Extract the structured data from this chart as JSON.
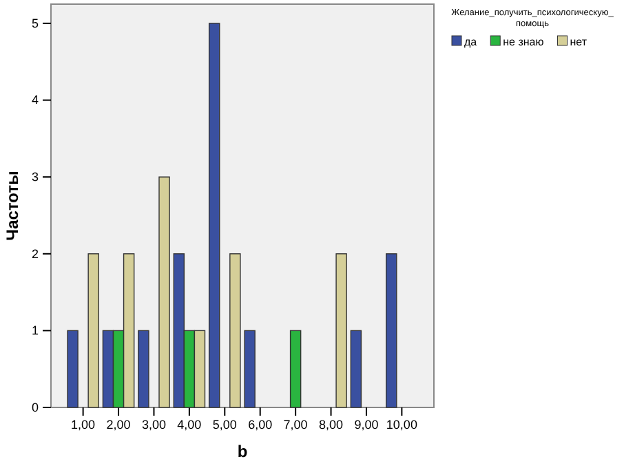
{
  "chart_data": {
    "type": "bar",
    "xlabel": "b",
    "ylabel": "Частоты",
    "legend_title": "Желание_получить_психологическую_помощь",
    "legend": "top right",
    "categories": [
      "1,00",
      "2,00",
      "3,00",
      "4,00",
      "5,00",
      "6,00",
      "7,00",
      "8,00",
      "9,00",
      "10,00"
    ],
    "series": [
      {
        "name": "да",
        "color": "#3a50a0",
        "values": [
          1,
          1,
          1,
          2,
          5,
          1,
          null,
          null,
          1,
          2
        ]
      },
      {
        "name": "не знаю",
        "color": "#2ab540",
        "values": [
          null,
          1,
          null,
          1,
          null,
          null,
          1,
          null,
          null,
          null
        ]
      },
      {
        "name": "нет",
        "color": "#d5cf98",
        "values": [
          2,
          2,
          3,
          1,
          2,
          null,
          null,
          2,
          null,
          null
        ]
      }
    ],
    "ylim": [
      0,
      5.25
    ],
    "yticks": [
      0,
      1,
      2,
      3,
      4,
      5
    ],
    "grid": false
  }
}
